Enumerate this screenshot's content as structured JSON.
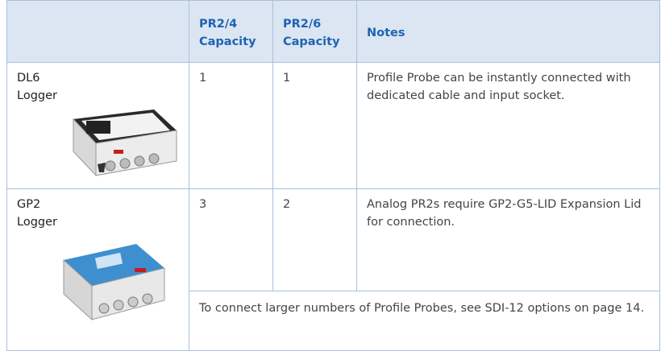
{
  "table": {
    "header": [
      "PR2/4 Capacity",
      "PR2/6 Capacity",
      "Notes"
    ],
    "rows": [
      {
        "name": "DL6 Logger",
        "pr2_4": 1,
        "pr2_6": 1,
        "notes": "Profile Probe can be instantly connected with dedicated cable and input socket."
      },
      {
        "name": "GP2 Logger",
        "pr2_4": 3,
        "pr2_6": 2,
        "notes": "Analog PR2s require GP2-G5-LID Expansion Lid for connection."
      }
    ],
    "footnote": "To connect larger numbers of Profile Probes, see SDI-12 options on page 14."
  }
}
